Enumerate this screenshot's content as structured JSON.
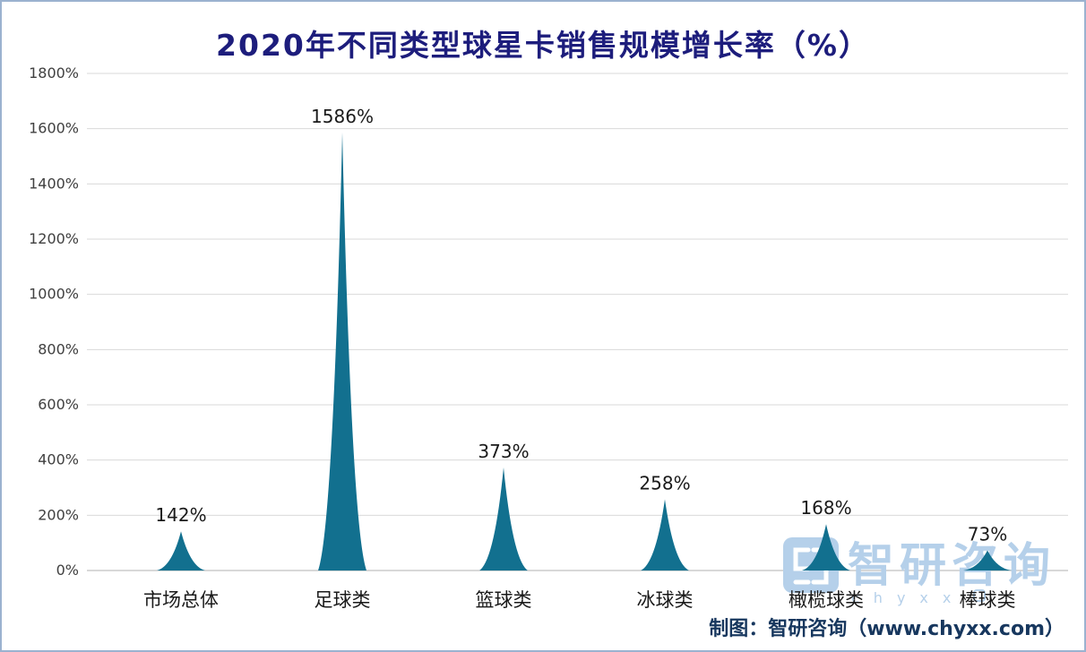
{
  "chart_data": {
    "type": "bar",
    "bar_shape": "triangle",
    "title": "2020年不同类型球星卡销售规模增长率（%）",
    "categories": [
      "市场总体",
      "足球类",
      "篮球类",
      "冰球类",
      "橄榄球类",
      "棒球类"
    ],
    "values": [
      142,
      1586,
      373,
      258,
      168,
      73
    ],
    "value_labels": [
      "142%",
      "1586%",
      "373%",
      "258%",
      "168%",
      "73%"
    ],
    "xlabel": "",
    "ylabel": "",
    "ylim": [
      0,
      1800
    ],
    "ytick_step": 200,
    "ytick_labels": [
      "0%",
      "200%",
      "400%",
      "600%",
      "800%",
      "1000%",
      "1200%",
      "1400%",
      "1600%",
      "1800%"
    ],
    "grid": true,
    "legend": false
  },
  "watermark": {
    "brand": "智研咨询",
    "subtext": "chyxx"
  },
  "caption": "制图：智研咨询（www.chyxx.com）",
  "colors": {
    "bar": "#12708f",
    "title": "#1d1d7c",
    "caption": "#17375e",
    "grid": "#d9d9d9",
    "axis": "#b0b0b0",
    "tick_text": "#404040",
    "label_text": "#1a1a1a",
    "watermark": "#b5d0ea",
    "border": "#9bb2cf"
  }
}
